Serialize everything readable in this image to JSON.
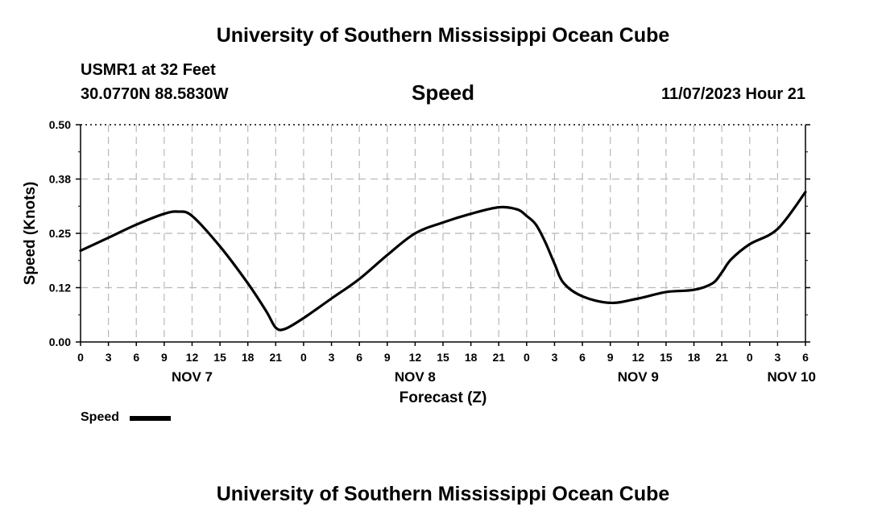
{
  "header": {
    "title": "University of Southern Mississippi Ocean Cube",
    "station": "USMR1 at 32 Feet",
    "coordinates": "30.0770N  88.5830W",
    "chart_title": "Speed",
    "date": "11/07/2023 Hour 21"
  },
  "footer": {
    "title": "University of Southern Mississippi Ocean Cube"
  },
  "legend": {
    "label": "Speed",
    "line_color": "#000000"
  },
  "chart_data": {
    "type": "line",
    "title": "Speed",
    "xlabel": "Forecast (Z)",
    "ylabel": "Speed (Knots)",
    "ylim": [
      0,
      0.5
    ],
    "xlim_hours": [
      0,
      78
    ],
    "x_tick_step_hours": 3,
    "y_ticks": [
      0.0,
      0.125,
      0.25,
      0.375,
      0.5
    ],
    "y_tick_labels": [
      "0.00",
      "0.12",
      "0.25",
      "0.38",
      "0.50"
    ],
    "x_tick_labels": [
      "0",
      "3",
      "6",
      "9",
      "12",
      "15",
      "18",
      "21",
      "0",
      "3",
      "6",
      "9",
      "12",
      "15",
      "18",
      "21",
      "0",
      "3",
      "6",
      "9",
      "12",
      "15",
      "18",
      "21",
      "0",
      "3",
      "6"
    ],
    "day_labels": [
      {
        "label": "NOV 7",
        "hour": 12
      },
      {
        "label": "NOV 8",
        "hour": 36
      },
      {
        "label": "NOV 9",
        "hour": 60
      },
      {
        "label": "NOV 10",
        "hour": 76.5
      }
    ],
    "grid": true,
    "series": [
      {
        "name": "Speed",
        "color": "#000000",
        "x": [
          0,
          3,
          6,
          9,
          10.5,
          12,
          15,
          18,
          20,
          21,
          22,
          24,
          27,
          30,
          33,
          36,
          39,
          42,
          45,
          47,
          48,
          49,
          50,
          51,
          52,
          54,
          57,
          60,
          63,
          66,
          68,
          69,
          70,
          72,
          75,
          78
        ],
        "values": [
          0.21,
          0.24,
          0.27,
          0.295,
          0.3,
          0.29,
          0.22,
          0.135,
          0.07,
          0.033,
          0.03,
          0.055,
          0.1,
          0.145,
          0.2,
          0.25,
          0.275,
          0.295,
          0.31,
          0.305,
          0.29,
          0.27,
          0.23,
          0.18,
          0.135,
          0.105,
          0.09,
          0.1,
          0.115,
          0.12,
          0.135,
          0.16,
          0.19,
          0.225,
          0.26,
          0.345
        ]
      }
    ]
  }
}
